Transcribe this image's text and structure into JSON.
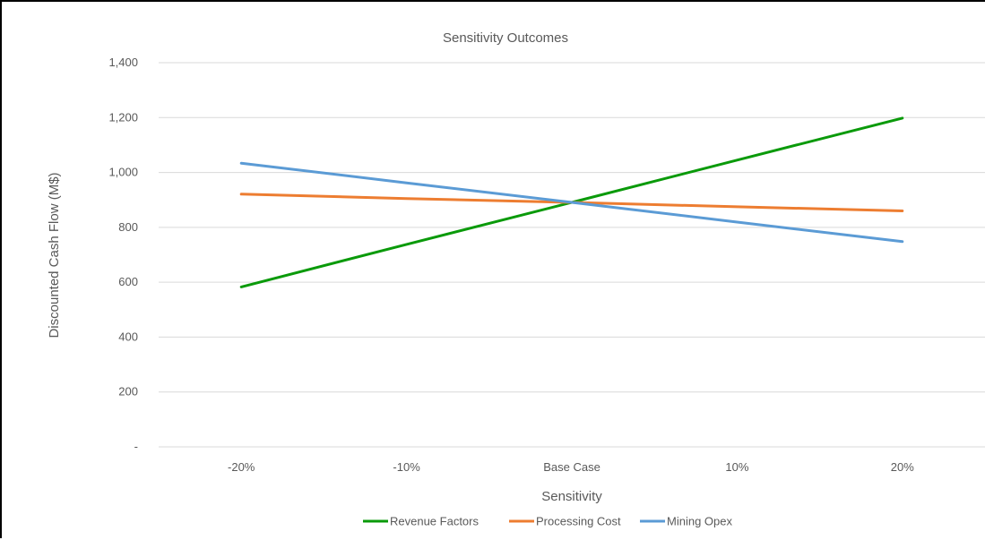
{
  "chart_data": {
    "type": "line",
    "title": "Sensitivity Outcomes",
    "xlabel": "Sensitivity",
    "ylabel": "Discounted Cash Flow (M$)",
    "categories": [
      "-20%",
      "-10%",
      "Base Case",
      "10%",
      "20%"
    ],
    "ylim": [
      0,
      1400
    ],
    "yticks": [
      0,
      200,
      400,
      600,
      800,
      1000,
      1200,
      1400
    ],
    "ytick_labels": [
      "-",
      "200",
      "400",
      "600",
      "800",
      "1,000",
      "1,200",
      "1,400"
    ],
    "grid": true,
    "legend_position": "bottom",
    "series": [
      {
        "name": "Revenue Factors",
        "color": "#0a9a0a",
        "values": [
          583,
          738,
          891,
          1045,
          1198
        ]
      },
      {
        "name": "Processing Cost",
        "color": "#ed7d31",
        "values": [
          921,
          905,
          891,
          875,
          860
        ]
      },
      {
        "name": "Mining Opex",
        "color": "#5b9bd5",
        "values": [
          1034,
          962,
          891,
          819,
          748
        ]
      }
    ]
  }
}
